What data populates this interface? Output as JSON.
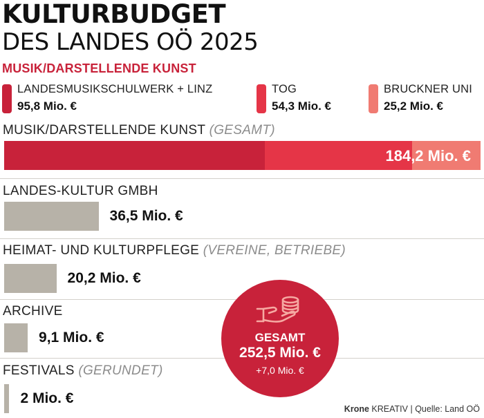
{
  "header": {
    "title": "KULTURBUDGET",
    "subtitle": "DES LANDES OÖ 2025",
    "section": "MUSIK/DARSTELLENDE KUNST"
  },
  "colors": {
    "accent_dark": "#c8223a",
    "accent_mid": "#e53547",
    "accent_light": "#f07b72",
    "neutral_bar": "#b7b2a8",
    "divider": "#d3d0cb"
  },
  "legend": [
    {
      "label": "LANDESMUSIKSCHULWERK + LINZ",
      "value": "95,8 Mio. €"
    },
    {
      "label": "TOG",
      "value": "54,3 Mio. €"
    },
    {
      "label": "BRUCKNER UNI",
      "value": "25,2 Mio. €"
    }
  ],
  "rows": [
    {
      "label": "MUSIK/DARSTELLENDE KUNST",
      "qualifier": "(GESAMT)",
      "value": "184,2 Mio. €"
    },
    {
      "label": "LANDES-KULTUR GMBH",
      "qualifier": "",
      "value": "36,5 Mio. €"
    },
    {
      "label": "HEIMAT- UND KULTURPFLEGE",
      "qualifier": "(VEREINE, BETRIEBE)",
      "value": "20,2 Mio. €"
    },
    {
      "label": "ARCHIVE",
      "qualifier": "",
      "value": "9,1 Mio. €"
    },
    {
      "label": "FESTIVALS",
      "qualifier": "(GERUNDET)",
      "value": "2 Mio. €"
    }
  ],
  "total": {
    "icon": "hand-coins-icon",
    "title": "GESAMT",
    "value": "252,5 Mio. €",
    "delta": "+7,0 Mio. €"
  },
  "credit": {
    "brand": "Krone",
    "unit": "KREATIV",
    "source": "Quelle: Land OÖ"
  },
  "chart_data": {
    "type": "bar",
    "orientation": "horizontal",
    "unit": "Mio. €",
    "categories": [
      "MUSIK/DARSTELLENDE KUNST",
      "LANDES-KULTUR GMBH",
      "HEIMAT- UND KULTURPFLEGE",
      "ARCHIVE",
      "FESTIVALS"
    ],
    "values": [
      184.2,
      36.5,
      20.2,
      9.1,
      2
    ],
    "stacked_first_bar": {
      "category": "MUSIK/DARSTELLENDE KUNST",
      "series": [
        {
          "name": "LANDESMUSIKSCHULWERK + LINZ",
          "value": 95.8,
          "color": "#c8223a"
        },
        {
          "name": "TOG",
          "value": 54.3,
          "color": "#e53547"
        },
        {
          "name": "BRUCKNER UNI",
          "value": 25.2,
          "color": "#f07b72"
        }
      ]
    },
    "total": 252.5,
    "total_change": 7.0
  }
}
